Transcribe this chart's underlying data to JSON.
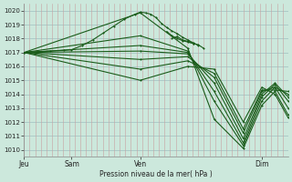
{
  "bg_color": "#cce8dc",
  "grid_color_h": "#a0bfc0",
  "grid_color_v": "#c8a0a0",
  "line_color": "#1a5c1a",
  "ylim": [
    1009.5,
    1020.5
  ],
  "ylabel_ticks": [
    1010,
    1011,
    1012,
    1013,
    1014,
    1015,
    1016,
    1017,
    1018,
    1019,
    1020
  ],
  "xlabel": "Pression niveau de la mer( hPa )",
  "xtick_labels": [
    "Jeu",
    "Sam",
    "Ven",
    "Dim"
  ],
  "xtick_positions": [
    0.0,
    0.18,
    0.44,
    0.9
  ],
  "ensemble_lines": [
    {
      "points": [
        [
          0.0,
          1017.0
        ],
        [
          0.44,
          1019.85
        ],
        [
          0.62,
          1017.3
        ],
        [
          0.72,
          1012.2
        ],
        [
          0.83,
          1010.1
        ],
        [
          0.9,
          1013.2
        ],
        [
          0.95,
          1014.2
        ],
        [
          1.0,
          1012.5
        ]
      ]
    },
    {
      "points": [
        [
          0.0,
          1017.0
        ],
        [
          0.44,
          1018.2
        ],
        [
          0.62,
          1017.1
        ],
        [
          0.72,
          1013.5
        ],
        [
          0.83,
          1010.3
        ],
        [
          0.9,
          1013.5
        ],
        [
          0.95,
          1014.5
        ],
        [
          1.0,
          1013.0
        ]
      ]
    },
    {
      "points": [
        [
          0.0,
          1017.0
        ],
        [
          0.44,
          1017.5
        ],
        [
          0.62,
          1017.0
        ],
        [
          0.72,
          1014.2
        ],
        [
          0.83,
          1010.5
        ],
        [
          0.9,
          1013.8
        ],
        [
          0.95,
          1014.7
        ],
        [
          1.0,
          1013.5
        ]
      ]
    },
    {
      "points": [
        [
          0.0,
          1017.0
        ],
        [
          0.44,
          1017.1
        ],
        [
          0.62,
          1016.9
        ],
        [
          0.72,
          1014.8
        ],
        [
          0.83,
          1010.8
        ],
        [
          0.9,
          1014.0
        ],
        [
          0.95,
          1014.8
        ],
        [
          1.0,
          1013.8
        ]
      ]
    },
    {
      "points": [
        [
          0.0,
          1017.0
        ],
        [
          0.44,
          1016.5
        ],
        [
          0.62,
          1016.7
        ],
        [
          0.72,
          1015.2
        ],
        [
          0.83,
          1011.2
        ],
        [
          0.9,
          1014.2
        ],
        [
          0.95,
          1014.5
        ],
        [
          1.0,
          1014.0
        ]
      ]
    },
    {
      "points": [
        [
          0.0,
          1017.0
        ],
        [
          0.44,
          1015.8
        ],
        [
          0.62,
          1016.4
        ],
        [
          0.72,
          1015.5
        ],
        [
          0.83,
          1011.5
        ],
        [
          0.9,
          1014.3
        ],
        [
          0.95,
          1014.3
        ],
        [
          1.0,
          1014.2
        ]
      ]
    },
    {
      "points": [
        [
          0.0,
          1017.0
        ],
        [
          0.44,
          1015.0
        ],
        [
          0.62,
          1016.0
        ],
        [
          0.72,
          1015.8
        ],
        [
          0.83,
          1012.0
        ],
        [
          0.9,
          1014.5
        ],
        [
          0.95,
          1014.0
        ],
        [
          1.0,
          1012.3
        ]
      ]
    }
  ],
  "top_curve": {
    "x": [
      0.0,
      0.05,
      0.1,
      0.15,
      0.18,
      0.22,
      0.26,
      0.3,
      0.34,
      0.38,
      0.42,
      0.44,
      0.46,
      0.48,
      0.5,
      0.52,
      0.54,
      0.56,
      0.58,
      0.6,
      0.62,
      0.64,
      0.66
    ],
    "y": [
      1017.0,
      1017.05,
      1017.1,
      1017.15,
      1017.2,
      1017.5,
      1017.9,
      1018.4,
      1018.9,
      1019.4,
      1019.75,
      1019.9,
      1019.85,
      1019.75,
      1019.5,
      1019.1,
      1018.8,
      1018.55,
      1018.35,
      1018.1,
      1017.9,
      1017.7,
      1017.5
    ]
  },
  "wiggle_curve": {
    "x": [
      0.54,
      0.56,
      0.58,
      0.6,
      0.62,
      0.64,
      0.66,
      0.68
    ],
    "y": [
      1018.5,
      1018.2,
      1018.0,
      1017.85,
      1017.75,
      1017.65,
      1017.55,
      1017.3
    ]
  },
  "secondary_wiggle": {
    "x": [
      0.56,
      0.58,
      0.6,
      0.62,
      0.64
    ],
    "y": [
      1018.0,
      1018.15,
      1017.9,
      1017.8,
      1017.65
    ]
  }
}
